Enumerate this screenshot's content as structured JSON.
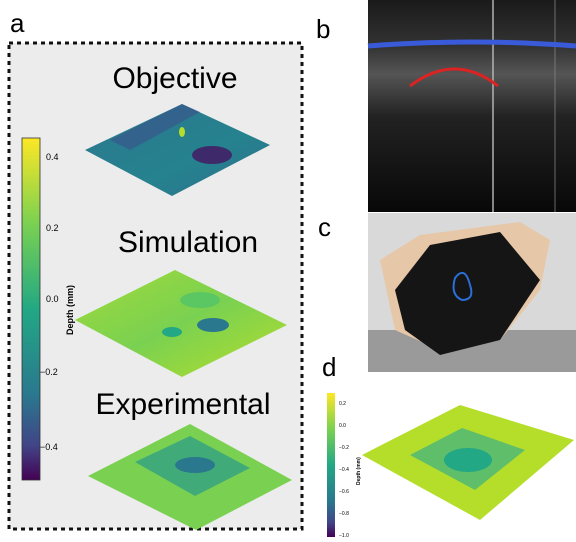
{
  "panels": {
    "a": {
      "label": "a",
      "titles": [
        "Objective",
        "Simulation",
        "Experimental"
      ],
      "colorbar": {
        "label": "Depth (mm)",
        "ticks": [
          "0.4",
          "0.2",
          "0.0",
          "−0.2",
          "−0.4"
        ]
      }
    },
    "b": {
      "label": "b"
    },
    "c": {
      "label": "c"
    },
    "d": {
      "label": "d",
      "colorbar": {
        "label": "Depth (mm)",
        "ticks": [
          "0.2",
          "0.0",
          "−0.2",
          "−0.4",
          "−0.6",
          "−0.8",
          "−1.0"
        ]
      }
    }
  }
}
